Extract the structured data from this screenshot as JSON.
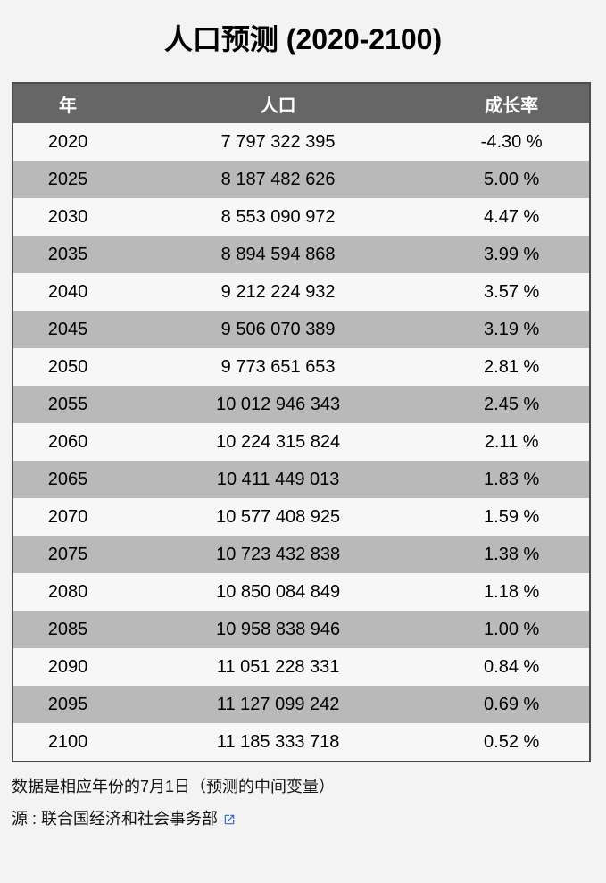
{
  "title": "人口预测 (2020-2100)",
  "table": {
    "headers": [
      "年",
      "人口",
      "成长率"
    ],
    "rows": [
      [
        "2020",
        "7 797 322 395",
        "-4.30 %"
      ],
      [
        "2025",
        "8 187 482 626",
        "5.00 %"
      ],
      [
        "2030",
        "8 553 090 972",
        "4.47 %"
      ],
      [
        "2035",
        "8 894 594 868",
        "3.99 %"
      ],
      [
        "2040",
        "9 212 224 932",
        "3.57 %"
      ],
      [
        "2045",
        "9 506 070 389",
        "3.19 %"
      ],
      [
        "2050",
        "9 773 651 653",
        "2.81 %"
      ],
      [
        "2055",
        "10 012 946 343",
        "2.45 %"
      ],
      [
        "2060",
        "10 224 315 824",
        "2.11 %"
      ],
      [
        "2065",
        "10 411 449 013",
        "1.83 %"
      ],
      [
        "2070",
        "10 577 408 925",
        "1.59 %"
      ],
      [
        "2075",
        "10 723 432 838",
        "1.38 %"
      ],
      [
        "2080",
        "10 850 084 849",
        "1.18 %"
      ],
      [
        "2085",
        "10 958 838 946",
        "1.00 %"
      ],
      [
        "2090",
        "11 051 228 331",
        "0.84 %"
      ],
      [
        "2095",
        "11 127 099 242",
        "0.69 %"
      ],
      [
        "2100",
        "11 185 333 718",
        "0.52 %"
      ]
    ]
  },
  "footnotes": {
    "note": "数据是相应年份的7月1日（预测的中间变量）",
    "source_label": "源 : ",
    "source_text": "联合国经济和社会事务部",
    "source_icon": "external-link-icon"
  },
  "colors": {
    "page_bg": "#f3f3f3",
    "header_bg": "#666666",
    "header_text": "#ffffff",
    "row_light": "#f7f7f7",
    "row_dark": "#b9b9b9",
    "table_border": "#4d4d4d",
    "link_icon_blue": "#3366cc"
  },
  "chart_data": {
    "type": "table",
    "title": "人口预测 (2020-2100)",
    "columns": [
      "年",
      "人口",
      "成长率"
    ],
    "years": [
      2020,
      2025,
      2030,
      2035,
      2040,
      2045,
      2050,
      2055,
      2060,
      2065,
      2070,
      2075,
      2080,
      2085,
      2090,
      2095,
      2100
    ],
    "population": [
      7797322395,
      8187482626,
      8553090972,
      8894594868,
      9212224932,
      9506070389,
      9773651653,
      10012946343,
      10224315824,
      10411449013,
      10577408925,
      10723432838,
      10850084849,
      10958838946,
      11051228331,
      11127099242,
      11185333718
    ],
    "growth_rate_percent": [
      -4.3,
      5.0,
      4.47,
      3.99,
      3.57,
      3.19,
      2.81,
      2.45,
      2.11,
      1.83,
      1.59,
      1.38,
      1.18,
      1.0,
      0.84,
      0.69,
      0.52
    ],
    "note": "数据是相应年份的7月1日（预测的中间变量）",
    "source": "联合国经济和社会事务部"
  }
}
